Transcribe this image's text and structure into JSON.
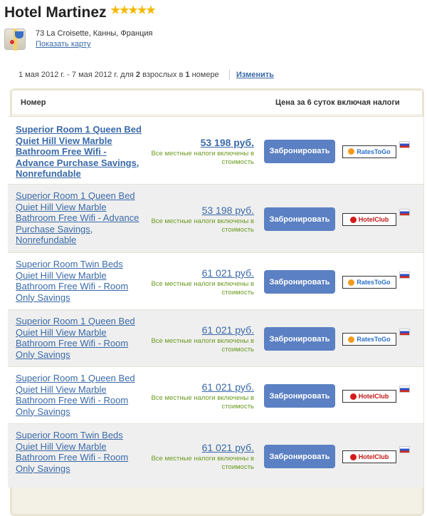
{
  "hotel": {
    "name": "Hotel Martinez",
    "stars": 5,
    "stars_text": "★★★★★",
    "address": "73 La Croisette, Канны, Франция",
    "show_map": "Показать карту"
  },
  "search": {
    "dates": "1 мая 2012 г. - 7 мая 2012 г. для ",
    "adults": "2",
    "adults_text": " взрослых в ",
    "rooms": "1",
    "rooms_text": " номере",
    "change": "Изменить"
  },
  "table": {
    "col_room": "Номер",
    "col_price": "Цена за 6 суток включая налоги"
  },
  "book_label": "Забронировать",
  "tax_note": "Все местные налоги включены в стоимость",
  "rows": [
    {
      "name": "Superior Room 1 Queen Bed Quiet Hill View Marble Bathroom Free Wifi - Advance Purchase Savings, Nonrefundable",
      "price": "53 198 руб.",
      "provider": "RatesToGo"
    },
    {
      "name": "Superior Room 1 Queen Bed Quiet Hill View Marble Bathroom Free Wifi - Advance Purchase Savings, Nonrefundable",
      "price": "53 198 руб.",
      "provider": "HotelClub"
    },
    {
      "name": "Superior Room Twin Beds Quiet Hill View Marble Bathroom Free Wifi - Room Only Savings",
      "price": "61 021 руб.",
      "provider": "RatesToGo"
    },
    {
      "name": "Superior Room 1 Queen Bed Quiet Hill View Marble Bathroom Free Wifi - Room Only Savings",
      "price": "61 021 руб.",
      "provider": "RatesToGo"
    },
    {
      "name": "Superior Room 1 Queen Bed Quiet Hill View Marble Bathroom Free Wifi - Room Only Savings",
      "price": "61 021 руб.",
      "provider": "HotelClub"
    },
    {
      "name": "Superior Room Twin Beds Quiet Hill View Marble Bathroom Free Wifi - Room Only Savings",
      "price": "61 021 руб.",
      "provider": "HotelClub"
    }
  ],
  "colors": {
    "link": "#3a6aa8",
    "button": "#5b80c3",
    "tax": "#6a9a1f",
    "stars": "#f5b800"
  }
}
